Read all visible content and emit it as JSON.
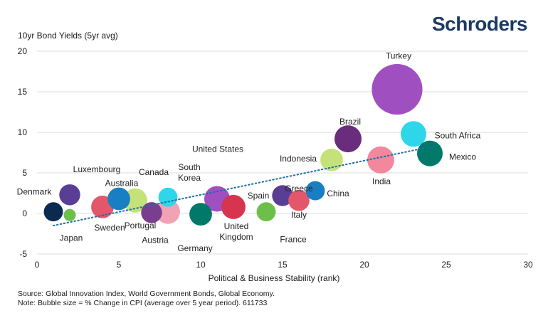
{
  "brand": {
    "logo_text": "Schroders"
  },
  "chart_data": {
    "type": "scatter",
    "ylabel": "10yr Bond Yields (5yr avg)",
    "xlabel": "Political & Business Stability (rank)",
    "xlim": [
      0,
      30
    ],
    "ylim": [
      -5,
      20
    ],
    "x_ticks": [
      0,
      5,
      10,
      15,
      20,
      25,
      30
    ],
    "y_ticks": [
      -5,
      0,
      5,
      10,
      15,
      20
    ],
    "grid": "horizontal",
    "bubble_size_note": "Bubble size = % Change in CPI (average over 5 year period)",
    "trendline": {
      "style": "dotted",
      "color": "#1a6fa3",
      "start": [
        1,
        -1.5
      ],
      "end": [
        24,
        8.2
      ]
    },
    "points": [
      {
        "label": "Denmark",
        "x": 1,
        "y": 0.2,
        "size": 0.5,
        "color": "#0b2a4f"
      },
      {
        "label": "Luxembourg",
        "x": 2,
        "y": 2.3,
        "size": 0.6,
        "color": "#5a3e95"
      },
      {
        "label": "Japan",
        "x": 2,
        "y": -0.2,
        "size": 0.2,
        "color": "#6cc04a"
      },
      {
        "label": "Sweden",
        "x": 4,
        "y": 0.8,
        "size": 0.7,
        "color": "#e4576a"
      },
      {
        "label": "Australia",
        "x": 5,
        "y": 1.8,
        "size": 0.7,
        "color": "#1a7fc2"
      },
      {
        "label": "Canada",
        "x": 6,
        "y": 1.6,
        "size": 0.8,
        "color": "#c5e27a"
      },
      {
        "label": "Portugal",
        "x": 7,
        "y": 0.1,
        "size": 0.6,
        "color": "#7a3e8e"
      },
      {
        "label": "Austria",
        "x": 8,
        "y": 0.2,
        "size": 0.8,
        "color": "#f2a3b3"
      },
      {
        "label": "South Korea",
        "x": 8,
        "y": 2.0,
        "size": 0.5,
        "color": "#2fd6ea"
      },
      {
        "label": "Germany",
        "x": 10,
        "y": -0.1,
        "size": 0.7,
        "color": "#00796b"
      },
      {
        "label": "United States",
        "x": 11,
        "y": 1.8,
        "size": 0.9,
        "color": "#a04fc1"
      },
      {
        "label": "United Kingdom",
        "x": 12,
        "y": 0.8,
        "size": 0.8,
        "color": "#d6344f"
      },
      {
        "label": "France",
        "x": 14,
        "y": 0.2,
        "size": 0.5,
        "color": "#6cc04a"
      },
      {
        "label": "Spain",
        "x": 15,
        "y": 2.2,
        "size": 0.6,
        "color": "#5a3e95"
      },
      {
        "label": "Italy",
        "x": 16,
        "y": 1.6,
        "size": 0.6,
        "color": "#e4576a"
      },
      {
        "label": "Greece",
        "x": 16,
        "y": 1.6,
        "size": 0.6,
        "color": "#e4576a"
      },
      {
        "label": "China",
        "x": 17,
        "y": 2.8,
        "size": 0.5,
        "color": "#1a7fc2"
      },
      {
        "label": "Indonesia",
        "x": 18,
        "y": 6.6,
        "size": 0.7,
        "color": "#c5e27a"
      },
      {
        "label": "Brazil",
        "x": 19,
        "y": 9.2,
        "size": 1.0,
        "color": "#6a2d7d"
      },
      {
        "label": "India",
        "x": 21,
        "y": 6.6,
        "size": 1.0,
        "color": "#f2879e"
      },
      {
        "label": "Turkey",
        "x": 22,
        "y": 15.3,
        "size": 3.5,
        "color": "#a04fc1"
      },
      {
        "label": "South Africa",
        "x": 23,
        "y": 9.8,
        "size": 0.9,
        "color": "#2fd6ea"
      },
      {
        "label": "Mexico",
        "x": 24,
        "y": 7.4,
        "size": 0.9,
        "color": "#00796b"
      }
    ]
  },
  "footer": {
    "source": "Source: Global Innovation Index, World Government Bonds, Global Economy.",
    "note": "Note: Bubble size = % Change in CPI (average over 5 year period). 611733"
  }
}
